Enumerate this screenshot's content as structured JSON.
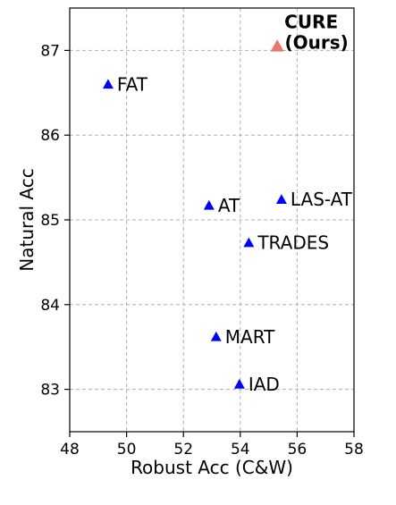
{
  "chart_data": {
    "type": "scatter",
    "xlabel": "Robust Acc (C&W)",
    "ylabel": "Natural Acc",
    "xlim": [
      48,
      58
    ],
    "ylim": [
      82.5,
      87.5
    ],
    "xticks": [
      "48",
      "50",
      "52",
      "54",
      "56",
      "58"
    ],
    "yticks": [
      "83",
      "84",
      "85",
      "86",
      "87"
    ],
    "grid": true,
    "points": [
      {
        "label": "CURE",
        "label_line2": "(Ours)",
        "x": 55.3,
        "y": 87.05,
        "color": "#e8776b",
        "highlight": true
      },
      {
        "label": "FAT",
        "x": 49.35,
        "y": 86.6,
        "color": "#0000ff"
      },
      {
        "label": "AT",
        "x": 52.9,
        "y": 85.17,
        "color": "#0000ff"
      },
      {
        "label": "LAS-AT",
        "x": 55.45,
        "y": 85.24,
        "color": "#0000ff"
      },
      {
        "label": "TRADES",
        "x": 54.3,
        "y": 84.73,
        "color": "#0000ff"
      },
      {
        "label": "MART",
        "x": 53.15,
        "y": 83.62,
        "color": "#0000ff"
      },
      {
        "label": "IAD",
        "x": 53.97,
        "y": 83.06,
        "color": "#0000ff"
      }
    ]
  }
}
